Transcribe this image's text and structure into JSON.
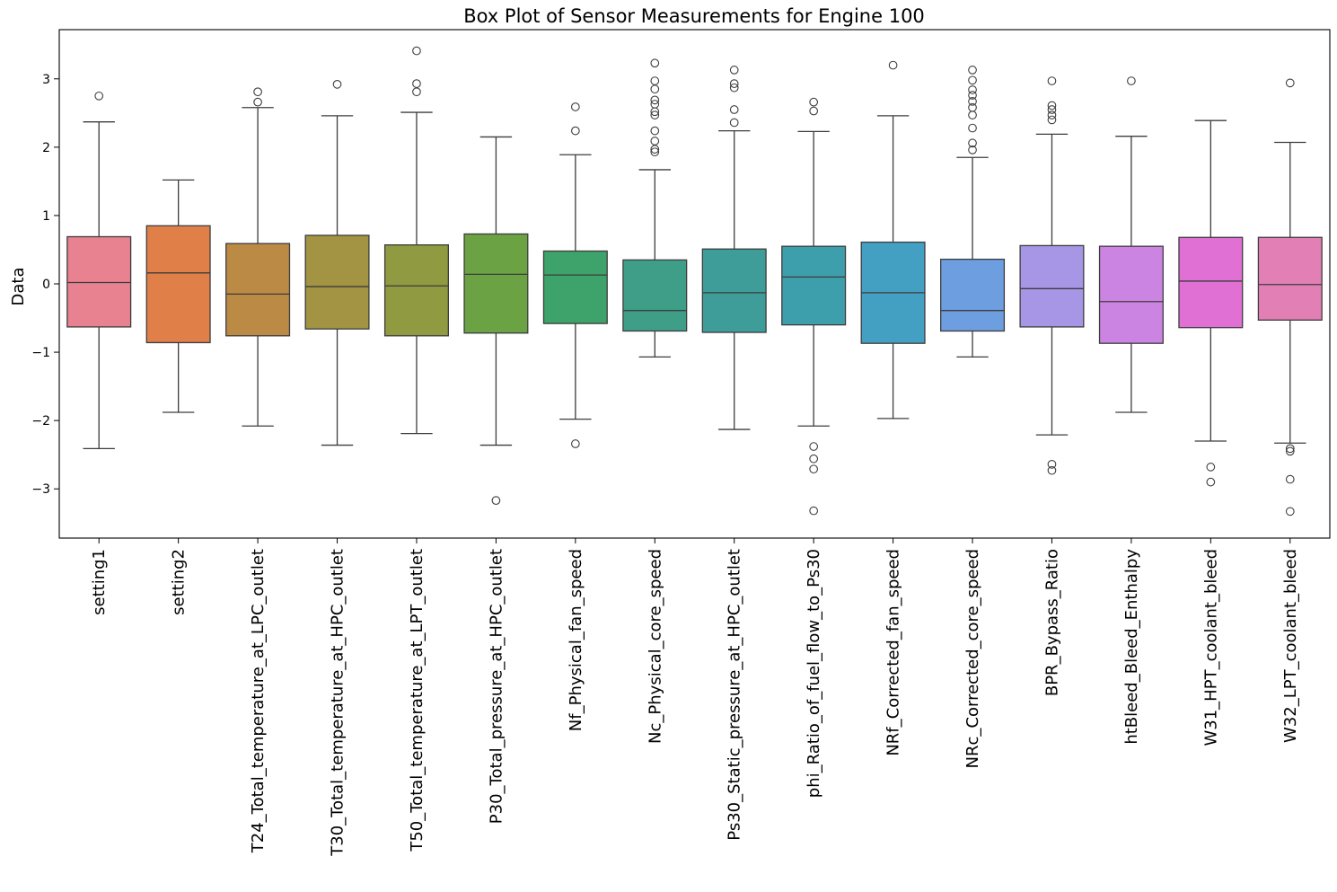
{
  "chart_data": {
    "type": "box",
    "title": "Box Plot of Sensor Measurements for Engine 100",
    "xlabel": "",
    "ylabel": "Data",
    "ylim": [
      -3.72,
      3.72
    ],
    "yticks": [
      -3,
      -2,
      -1,
      0,
      1,
      2,
      3
    ],
    "ytick_labels": [
      "−3",
      "−2",
      "−1",
      "0",
      "1",
      "2",
      "3"
    ],
    "grid": false,
    "legend": "none",
    "categories": [
      "setting1",
      "setting2",
      "T24_Total_temperature_at_LPC_outlet",
      "T30_Total_temperature_at_HPC_outlet",
      "T50_Total_temperature_at_LPT_outlet",
      "P30_Total_pressure_at_HPC_outlet",
      "Nf_Physical_fan_speed",
      "Nc_Physical_core_speed",
      "Ps30_Static_pressure_at_HPC_outlet",
      "phi_Ratio_of_fuel_flow_to_Ps30",
      "NRf_Corrected_fan_speed",
      "NRc_Corrected_core_speed",
      "BPR_Bypass_Ratio",
      "htBleed_Bleed_Enthalpy",
      "W31_HPT_coolant_bleed",
      "W32_LPT_coolant_bleed"
    ],
    "boxes": [
      {
        "whisker_low": -2.41,
        "q1": -0.63,
        "median": 0.02,
        "q3": 0.69,
        "whisker_high": 2.37,
        "outliers": [
          2.75
        ],
        "color": "#e88190"
      },
      {
        "whisker_low": -1.88,
        "q1": -0.86,
        "median": 0.16,
        "q3": 0.85,
        "whisker_high": 1.52,
        "outliers": [],
        "color": "#e08048"
      },
      {
        "whisker_low": -2.08,
        "q1": -0.76,
        "median": -0.15,
        "q3": 0.59,
        "whisker_high": 2.58,
        "outliers": [
          2.66,
          2.81
        ],
        "color": "#bb8a45"
      },
      {
        "whisker_low": -2.36,
        "q1": -0.66,
        "median": -0.04,
        "q3": 0.71,
        "whisker_high": 2.46,
        "outliers": [
          2.92
        ],
        "color": "#a29442"
      },
      {
        "whisker_low": -2.19,
        "q1": -0.76,
        "median": -0.03,
        "q3": 0.57,
        "whisker_high": 2.51,
        "outliers": [
          2.81,
          2.93,
          3.41
        ],
        "color": "#8f9a41"
      },
      {
        "whisker_low": -2.36,
        "q1": -0.72,
        "median": 0.14,
        "q3": 0.73,
        "whisker_high": 2.15,
        "outliers": [
          -3.17
        ],
        "color": "#6ba244"
      },
      {
        "whisker_low": -1.98,
        "q1": -0.58,
        "median": 0.13,
        "q3": 0.48,
        "whisker_high": 1.89,
        "outliers": [
          -2.34,
          2.24,
          2.59
        ],
        "color": "#3da36b"
      },
      {
        "whisker_low": -1.07,
        "q1": -0.69,
        "median": -0.39,
        "q3": 0.35,
        "whisker_high": 1.67,
        "outliers": [
          1.93,
          1.97,
          2.09,
          2.24,
          2.47,
          2.52,
          2.63,
          2.69,
          2.85,
          2.97,
          3.23
        ],
        "color": "#3f9e88"
      },
      {
        "whisker_low": -2.13,
        "q1": -0.71,
        "median": -0.13,
        "q3": 0.51,
        "whisker_high": 2.24,
        "outliers": [
          2.36,
          2.55,
          2.87,
          2.93,
          3.13
        ],
        "color": "#3e9c99"
      },
      {
        "whisker_low": -2.08,
        "q1": -0.6,
        "median": 0.1,
        "q3": 0.55,
        "whisker_high": 2.23,
        "outliers": [
          -2.38,
          -2.56,
          -2.71,
          -3.32,
          2.53,
          2.66
        ],
        "color": "#3e9fac"
      },
      {
        "whisker_low": -1.97,
        "q1": -0.87,
        "median": -0.13,
        "q3": 0.61,
        "whisker_high": 2.46,
        "outliers": [
          3.2
        ],
        "color": "#43a0c2"
      },
      {
        "whisker_low": -1.07,
        "q1": -0.69,
        "median": -0.39,
        "q3": 0.36,
        "whisker_high": 1.85,
        "outliers": [
          1.96,
          2.06,
          2.28,
          2.47,
          2.58,
          2.67,
          2.76,
          2.84,
          2.98,
          3.13
        ],
        "color": "#6c9ee0"
      },
      {
        "whisker_low": -2.21,
        "q1": -0.63,
        "median": -0.07,
        "q3": 0.56,
        "whisker_high": 2.19,
        "outliers": [
          -2.64,
          -2.73,
          2.4,
          2.47,
          2.55,
          2.61,
          2.97
        ],
        "color": "#a796e5"
      },
      {
        "whisker_low": -1.88,
        "q1": -0.87,
        "median": -0.26,
        "q3": 0.55,
        "whisker_high": 2.16,
        "outliers": [
          2.97
        ],
        "color": "#cb84e2"
      },
      {
        "whisker_low": -2.3,
        "q1": -0.64,
        "median": 0.04,
        "q3": 0.68,
        "whisker_high": 2.39,
        "outliers": [
          -2.68,
          -2.9
        ],
        "color": "#e170d5"
      },
      {
        "whisker_low": -2.33,
        "q1": -0.53,
        "median": -0.01,
        "q3": 0.68,
        "whisker_high": 2.07,
        "outliers": [
          -2.41,
          -2.45,
          -2.86,
          -3.33,
          2.94
        ],
        "color": "#e27fb4"
      }
    ]
  }
}
